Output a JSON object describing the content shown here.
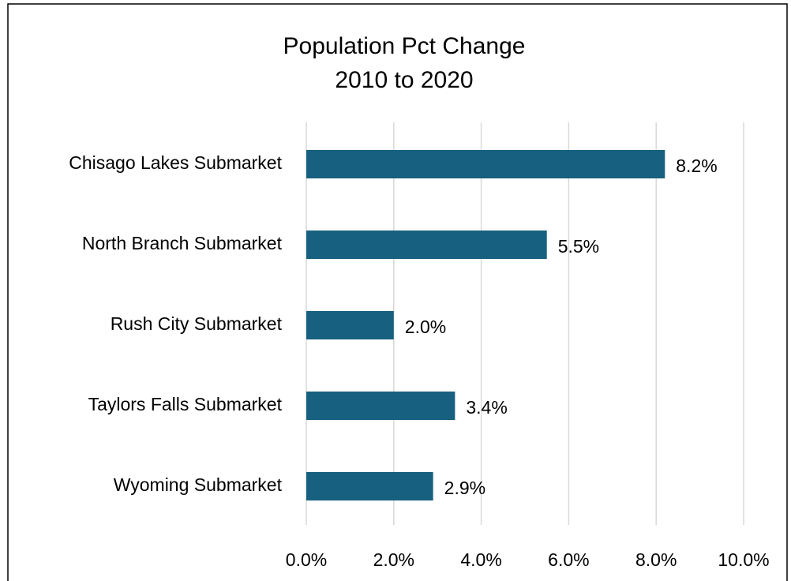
{
  "chart_data": {
    "type": "barh",
    "title": [
      "Population Pct Change",
      "2010 to 2020"
    ],
    "categories": [
      "Chisago Lakes Submarket",
      "North Branch Submarket",
      "Rush City Submarket",
      "Taylors Falls Submarket",
      "Wyoming Submarket"
    ],
    "values": [
      8.2,
      5.5,
      2.0,
      3.4,
      2.9
    ],
    "value_labels": [
      "8.2%",
      "5.5%",
      "2.0%",
      "3.4%",
      "2.9%"
    ],
    "color": "#17607f",
    "xlim": [
      0,
      10
    ],
    "xticks": [
      {
        "value": 0,
        "label": "0.0%"
      },
      {
        "value": 2,
        "label": "2.0%"
      },
      {
        "value": 4,
        "label": "4.0%"
      },
      {
        "value": 6,
        "label": "6.0%"
      },
      {
        "value": 8,
        "label": "8.0%"
      },
      {
        "value": 10,
        "label": "10.0%"
      }
    ],
    "grid": true
  }
}
